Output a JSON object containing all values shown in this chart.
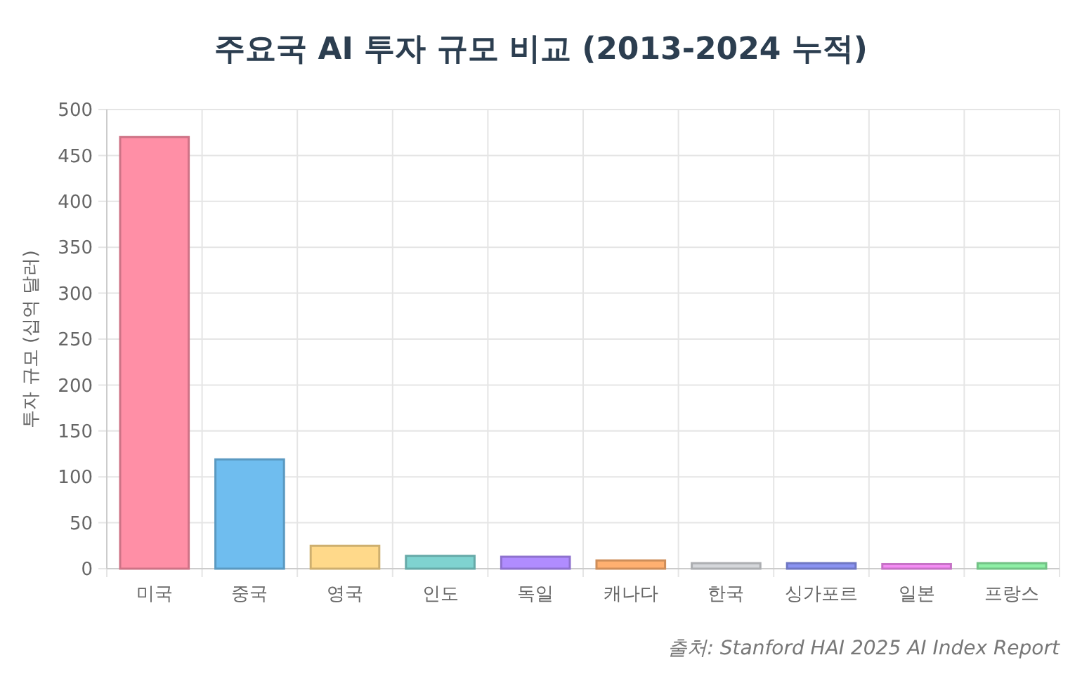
{
  "chart_data": {
    "type": "bar",
    "title": "주요국 AI 투자 규모 비교 (2013-2024 누적)",
    "ylabel": "투자 규모 (십억 달러)",
    "categories": [
      "미국",
      "중국",
      "영국",
      "인도",
      "독일",
      "캐나다",
      "한국",
      "싱가포르",
      "일본",
      "프랑스"
    ],
    "values": [
      470,
      119,
      25,
      14,
      13,
      9,
      6,
      6,
      5,
      6
    ],
    "colors": [
      "#ff8fa6",
      "#6fbdef",
      "#ffd98a",
      "#7fd3d0",
      "#b08cff",
      "#ffb070",
      "#d5d7db",
      "#8a93f2",
      "#f58df5",
      "#8ef0a6"
    ],
    "ylim": [
      0,
      500
    ],
    "yticks": [
      0,
      50,
      100,
      150,
      200,
      250,
      300,
      350,
      400,
      450,
      500
    ],
    "grid": true,
    "annotations": [
      "출처: Stanford HAI 2025 AI Index Report"
    ]
  }
}
